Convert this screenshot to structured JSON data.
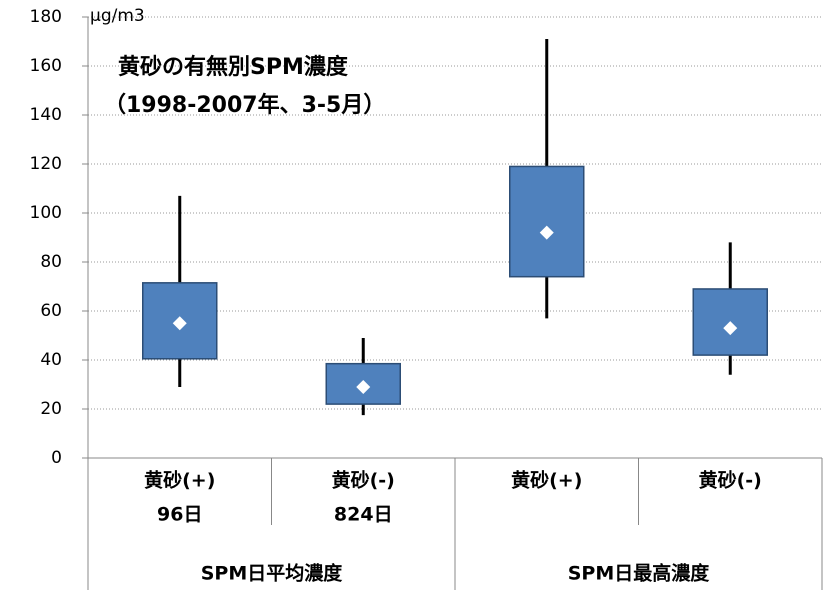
{
  "chart_data": {
    "type": "box",
    "title": "黄砂の有無別SPM濃度",
    "subtitle": "（1998-2007年、3-5月）",
    "y_label": "μg/m3",
    "ylim": [
      0,
      180
    ],
    "yticks": [
      0,
      20,
      40,
      60,
      80,
      100,
      120,
      140,
      160,
      180
    ],
    "grid": true,
    "color": "#4f81bd",
    "groups": [
      {
        "name": "SPM日平均濃度",
        "categories": [
          {
            "label": [
              "黄砂(+)",
              "96日"
            ],
            "min": 29,
            "q1": 40.5,
            "mean": 55,
            "q3": 71.5,
            "max": 107
          },
          {
            "label": [
              "黄砂(-)",
              "824日"
            ],
            "min": 17.5,
            "q1": 22,
            "mean": 29,
            "q3": 38.5,
            "max": 49
          }
        ]
      },
      {
        "name": "SPM日最高濃度",
        "categories": [
          {
            "label": [
              "黄砂(+)"
            ],
            "min": 57,
            "q1": 74,
            "mean": 92,
            "q3": 119,
            "max": 171
          },
          {
            "label": [
              "黄砂(-)"
            ],
            "min": 34,
            "q1": 42,
            "mean": 53,
            "q3": 69,
            "max": 88
          }
        ]
      }
    ]
  }
}
